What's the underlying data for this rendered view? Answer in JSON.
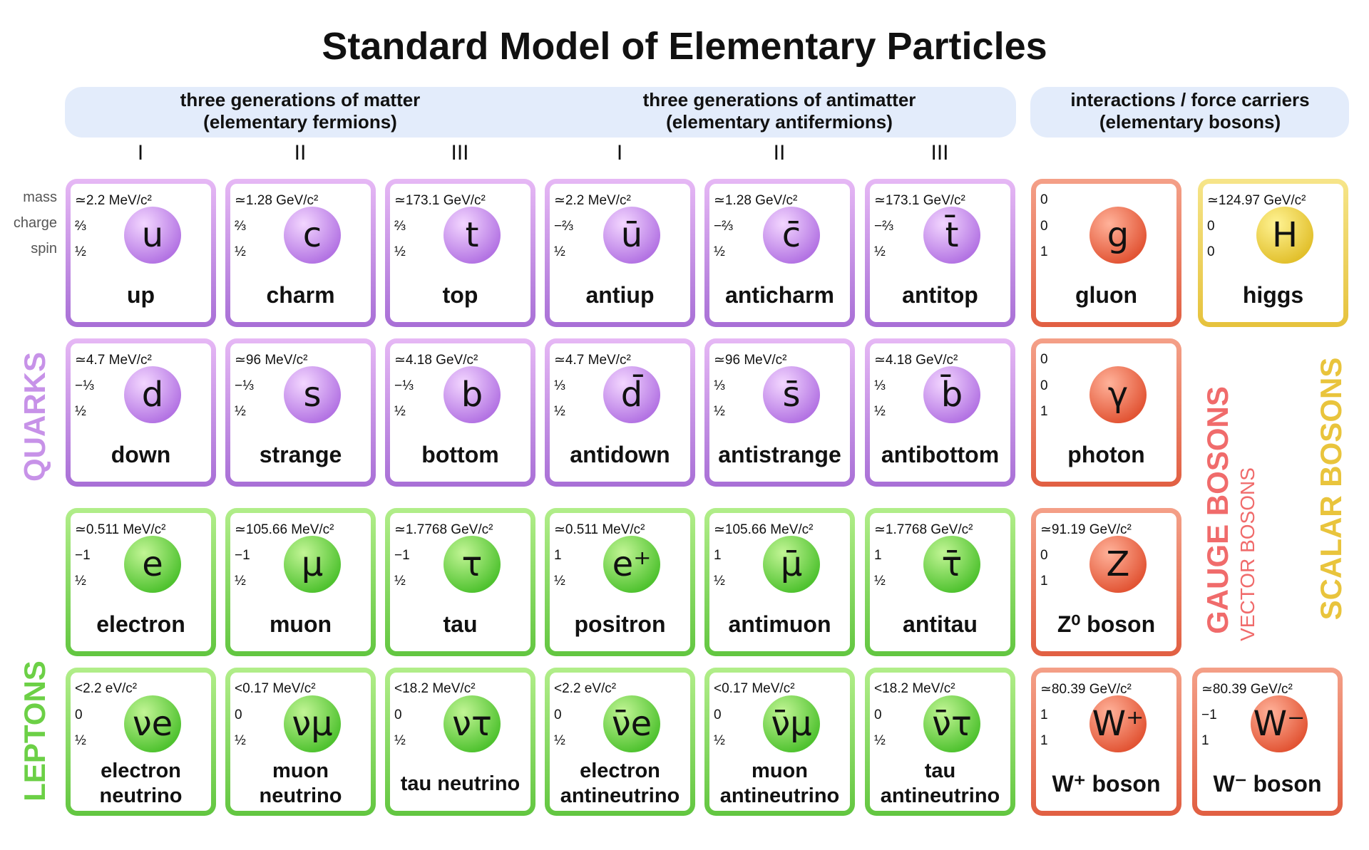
{
  "title": "Standard Model of Elementary Particles",
  "headers": [
    [
      "three generations of matter",
      "(elementary fermions)"
    ],
    [
      "three generations of antimatter",
      "(elementary antifermions)"
    ],
    [
      "interactions / force carriers",
      "(elementary bosons)"
    ]
  ],
  "generations": [
    "I",
    "II",
    "III",
    "I",
    "II",
    "III"
  ],
  "property_labels": [
    "mass",
    "charge",
    "spin"
  ],
  "group_labels": {
    "quarks": "QUARKS",
    "leptons": "LEPTONS",
    "gauge_bosons": "GAUGE BOSONS",
    "vector_bosons": "VECTOR BOSONS",
    "scalar_bosons": "SCALAR BOSONS"
  },
  "fermions": [
    [
      {
        "mass": "≃2.2 MeV/c²",
        "charge": "⅔",
        "spin": "½",
        "symbol": "u",
        "name": "up"
      },
      {
        "mass": "≃1.28 GeV/c²",
        "charge": "⅔",
        "spin": "½",
        "symbol": "c",
        "name": "charm"
      },
      {
        "mass": "≃173.1 GeV/c²",
        "charge": "⅔",
        "spin": "½",
        "symbol": "t",
        "name": "top"
      },
      {
        "mass": "≃2.2 MeV/c²",
        "charge": "−⅔",
        "spin": "½",
        "symbol": "ū",
        "name": "antiup"
      },
      {
        "mass": "≃1.28 GeV/c²",
        "charge": "−⅔",
        "spin": "½",
        "symbol": "c̄",
        "name": "anticharm"
      },
      {
        "mass": "≃173.1 GeV/c²",
        "charge": "−⅔",
        "spin": "½",
        "symbol": "t̄",
        "name": "antitop"
      }
    ],
    [
      {
        "mass": "≃4.7 MeV/c²",
        "charge": "−⅓",
        "spin": "½",
        "symbol": "d",
        "name": "down"
      },
      {
        "mass": "≃96 MeV/c²",
        "charge": "−⅓",
        "spin": "½",
        "symbol": "s",
        "name": "strange"
      },
      {
        "mass": "≃4.18 GeV/c²",
        "charge": "−⅓",
        "spin": "½",
        "symbol": "b",
        "name": "bottom"
      },
      {
        "mass": "≃4.7 MeV/c²",
        "charge": "⅓",
        "spin": "½",
        "symbol": "d̄",
        "name": "antidown"
      },
      {
        "mass": "≃96 MeV/c²",
        "charge": "⅓",
        "spin": "½",
        "symbol": "s̄",
        "name": "antistrange"
      },
      {
        "mass": "≃4.18 GeV/c²",
        "charge": "⅓",
        "spin": "½",
        "symbol": "b̄",
        "name": "antibottom"
      }
    ],
    [
      {
        "mass": "≃0.511 MeV/c²",
        "charge": "−1",
        "spin": "½",
        "symbol": "e",
        "name": "electron"
      },
      {
        "mass": "≃105.66 MeV/c²",
        "charge": "−1",
        "spin": "½",
        "symbol": "μ",
        "name": "muon"
      },
      {
        "mass": "≃1.7768 GeV/c²",
        "charge": "−1",
        "spin": "½",
        "symbol": "τ",
        "name": "tau"
      },
      {
        "mass": "≃0.511 MeV/c²",
        "charge": "1",
        "spin": "½",
        "symbol": "e⁺",
        "name": "positron"
      },
      {
        "mass": "≃105.66 MeV/c²",
        "charge": "1",
        "spin": "½",
        "symbol": "μ̄",
        "name": "antimuon"
      },
      {
        "mass": "≃1.7768 GeV/c²",
        "charge": "1",
        "spin": "½",
        "symbol": "τ̄",
        "name": "antitau"
      }
    ],
    [
      {
        "mass": "<2.2 eV/c²",
        "charge": "0",
        "spin": "½",
        "symbol": "νe",
        "name": "electron neutrino"
      },
      {
        "mass": "<0.17 MeV/c²",
        "charge": "0",
        "spin": "½",
        "symbol": "νμ",
        "name": "muon neutrino"
      },
      {
        "mass": "<18.2 MeV/c²",
        "charge": "0",
        "spin": "½",
        "symbol": "ντ",
        "name": "tau neutrino"
      },
      {
        "mass": "<2.2 eV/c²",
        "charge": "0",
        "spin": "½",
        "symbol": "ν̄e",
        "name": "electron antineutrino"
      },
      {
        "mass": "<0.17 MeV/c²",
        "charge": "0",
        "spin": "½",
        "symbol": "ν̄μ",
        "name": "muon antineutrino"
      },
      {
        "mass": "<18.2 MeV/c²",
        "charge": "0",
        "spin": "½",
        "symbol": "ν̄τ",
        "name": "tau antineutrino"
      }
    ]
  ],
  "bosons": [
    {
      "mass": "0",
      "charge": "0",
      "spin": "1",
      "symbol": "g",
      "name": "gluon"
    },
    {
      "mass": "0",
      "charge": "0",
      "spin": "1",
      "symbol": "γ",
      "name": "photon"
    },
    {
      "mass": "≃91.19 GeV/c²",
      "charge": "0",
      "spin": "1",
      "symbol": "Z",
      "name": "Z⁰ boson"
    },
    {
      "mass": "≃80.39 GeV/c²",
      "charge": "1",
      "spin": "1",
      "symbol": "W⁺",
      "name": "W⁺ boson"
    },
    {
      "mass": "≃124.97 GeV/c²",
      "charge": "0",
      "spin": "0",
      "symbol": "H",
      "name": "higgs"
    },
    {
      "mass": "≃80.39 GeV/c²",
      "charge": "−1",
      "spin": "1",
      "symbol": "W⁻",
      "name": "W⁻ boson"
    }
  ]
}
